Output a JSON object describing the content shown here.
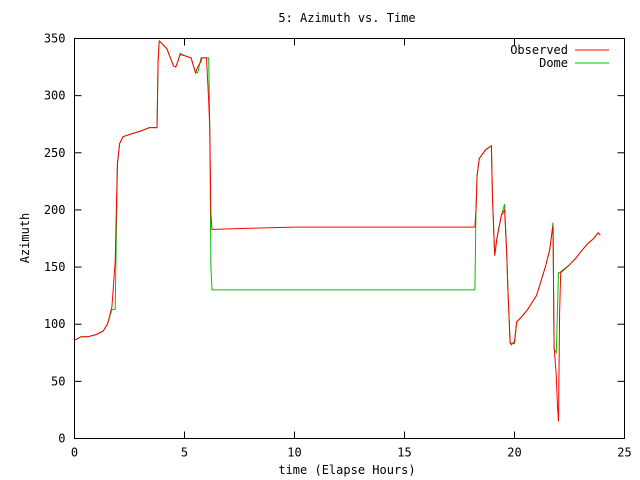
{
  "chart_data": {
    "type": "line",
    "title": "5: Azimuth vs. Time",
    "xlabel": "time (Elapse Hours)",
    "ylabel": "Azimuth",
    "xlim": [
      0,
      25
    ],
    "ylim": [
      0,
      350
    ],
    "xticks": [
      0,
      5,
      10,
      15,
      20,
      25
    ],
    "xtick_labels": [
      "0",
      "5",
      "10",
      "15",
      "20",
      "25"
    ],
    "yticks": [
      0,
      50,
      100,
      150,
      200,
      250,
      300,
      350
    ],
    "ytick_labels": [
      "0",
      "50",
      "100",
      "150",
      "200",
      "250",
      "300",
      "350"
    ],
    "grid": false,
    "legend": "top-right",
    "series": [
      {
        "name": "Observed",
        "color": "#ff0000",
        "x": [
          0,
          0.3,
          0.6,
          1.0,
          1.3,
          1.5,
          1.7,
          1.85,
          1.95,
          2.05,
          2.2,
          2.5,
          3.0,
          3.4,
          3.75,
          3.8,
          3.85,
          3.9,
          4.2,
          4.5,
          4.6,
          4.7,
          4.8,
          5.0,
          5.3,
          5.5,
          5.6,
          5.75,
          5.8,
          6.0,
          6.1,
          6.15,
          6.2,
          6.25,
          6.3,
          8.0,
          10,
          12,
          14,
          16,
          18.2,
          18.25,
          18.3,
          18.4,
          18.7,
          18.95,
          19.0,
          19.1,
          19.2,
          19.4,
          19.55,
          19.65,
          19.7,
          19.8,
          19.85,
          20.0,
          20.1,
          20.3,
          20.6,
          21.0,
          21.4,
          21.6,
          21.7,
          21.75,
          21.8,
          21.9,
          21.95,
          22.0,
          22.05,
          22.1,
          22.5,
          22.8,
          23.0,
          23.3,
          23.6,
          23.8,
          23.9
        ],
        "y": [
          86,
          89,
          89,
          91,
          94,
          100,
          115,
          155,
          240,
          258,
          264,
          266,
          269,
          272,
          272,
          330,
          347,
          347,
          341,
          326,
          325,
          330,
          336,
          335,
          333,
          320,
          325,
          330,
          333,
          333,
          295,
          270,
          196,
          183,
          183,
          184,
          185,
          185,
          185,
          185,
          185,
          200,
          230,
          245,
          253,
          256,
          210,
          160,
          175,
          195,
          200,
          160,
          130,
          85,
          82,
          85,
          102,
          106,
          113,
          125,
          150,
          165,
          180,
          186,
          80,
          55,
          30,
          15,
          110,
          145,
          152,
          158,
          163,
          170,
          175,
          180,
          178
        ]
      },
      {
        "name": "Dome",
        "color": "#00c000",
        "x": [
          0,
          0.3,
          0.6,
          1.0,
          1.3,
          1.5,
          1.7,
          1.85,
          1.95,
          2.05,
          2.2,
          2.5,
          3.0,
          3.4,
          3.75,
          3.8,
          3.85,
          3.9,
          4.2,
          4.5,
          4.6,
          4.7,
          4.8,
          5.0,
          5.3,
          5.5,
          5.6,
          5.75,
          5.8,
          6.0,
          6.1,
          6.15,
          6.2,
          6.25,
          6.3,
          8.0,
          10,
          12,
          14,
          16,
          18.2,
          18.25,
          18.3,
          18.4,
          18.7,
          18.95,
          19.0,
          19.1,
          19.2,
          19.4,
          19.55,
          19.65,
          19.7,
          19.8,
          19.85,
          20.0,
          20.1,
          20.3,
          20.6,
          21.0,
          21.4,
          21.6,
          21.7,
          21.75,
          21.8,
          21.9,
          22.0,
          22.05,
          22.1,
          22.5,
          22.8,
          23.0,
          23.3,
          23.6,
          23.8,
          23.9
        ],
        "y": [
          86,
          89,
          89,
          91,
          94,
          100,
          113,
          113,
          240,
          258,
          264,
          266,
          269,
          272,
          272,
          330,
          348,
          347,
          341,
          326,
          325,
          330,
          337,
          335,
          333,
          320,
          320,
          333,
          333,
          333,
          333,
          270,
          150,
          130,
          130,
          130,
          130,
          130,
          130,
          130,
          130,
          200,
          230,
          245,
          253,
          256,
          210,
          160,
          175,
          195,
          205,
          160,
          130,
          83,
          83,
          83,
          102,
          106,
          113,
          125,
          150,
          165,
          180,
          189,
          78,
          75,
          145,
          145,
          146,
          152,
          158,
          163,
          170,
          175,
          180,
          178
        ]
      }
    ]
  }
}
